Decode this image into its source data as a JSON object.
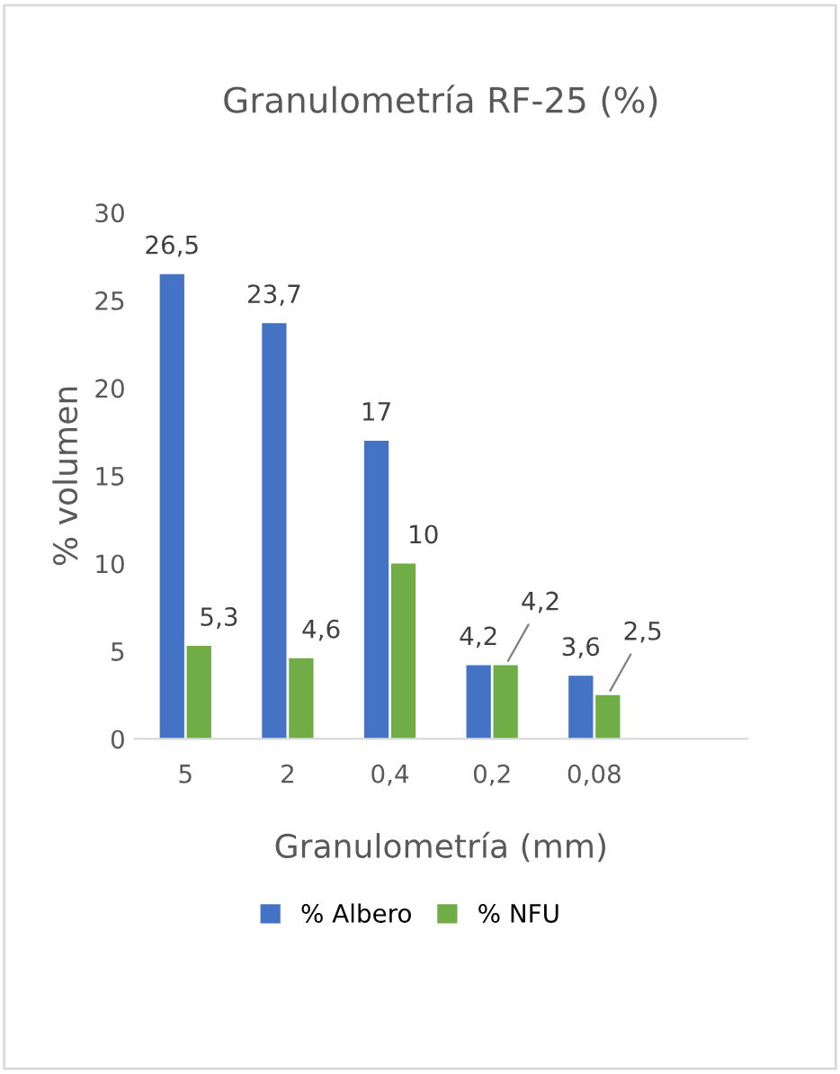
{
  "chart_data": {
    "type": "bar",
    "title": "Granulometría RF-25 (%)",
    "xlabel": "Granulometría (mm)",
    "ylabel": "% volumen",
    "categories": [
      "5",
      "2",
      "0,4",
      "0,2",
      "0,08",
      null
    ],
    "series": [
      {
        "name": "% Albero",
        "color": "#4472c4",
        "values": [
          26.5,
          23.7,
          17,
          4.2,
          3.6,
          null
        ],
        "value_labels": [
          "26,5",
          "23,7",
          "17",
          "4,2",
          "3,6",
          null
        ]
      },
      {
        "name": "% NFU",
        "color": "#70ad47",
        "values": [
          5.3,
          4.6,
          10,
          4.2,
          2.5,
          null
        ],
        "value_labels": [
          "5,3",
          "4,6",
          "10",
          "4,2",
          "2,5",
          null
        ]
      }
    ],
    "ylim": [
      0,
      30
    ],
    "yticks": [
      0,
      5,
      10,
      15,
      20,
      25,
      30
    ],
    "grid": false,
    "legend": "bottom"
  }
}
